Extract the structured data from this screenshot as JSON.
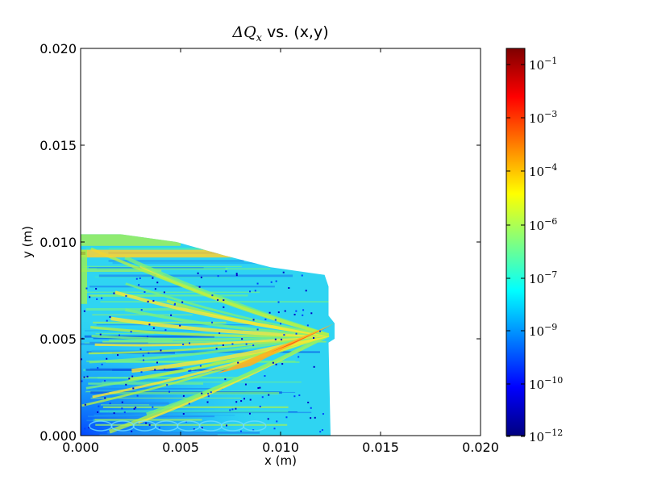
{
  "chart_data": {
    "type": "heatmap",
    "title": "ΔQ",
    "title_subscript": "x",
    "title_suffix": " vs. (x,y)",
    "xlabel": "x (m)",
    "ylabel": "y (m)",
    "xlim": [
      0.0,
      0.02
    ],
    "ylim": [
      0.0,
      0.02
    ],
    "xticks": [
      0.0,
      0.005,
      0.01,
      0.015,
      0.02
    ],
    "xtick_labels": [
      "0.000",
      "0.005",
      "0.010",
      "0.015",
      "0.020"
    ],
    "yticks": [
      0.0,
      0.005,
      0.01,
      0.015,
      0.02
    ],
    "ytick_labels": [
      "0.000",
      "0.005",
      "0.010",
      "0.015",
      "0.020"
    ],
    "grid": false,
    "colormap": "jet",
    "color_scale": "log",
    "colorbar": {
      "labels": [
        {
          "base": "10",
          "exp": "−1"
        },
        {
          "base": "10",
          "exp": "−3"
        },
        {
          "base": "10",
          "exp": "−4"
        },
        {
          "base": "10",
          "exp": "−6"
        },
        {
          "base": "10",
          "exp": "−7"
        },
        {
          "base": "10",
          "exp": "−9"
        },
        {
          "base": "10",
          "exp": "−10"
        },
        {
          "base": "10",
          "exp": "−12"
        }
      ],
      "colors": [
        "#7f0000",
        "#ff0000",
        "#ff8000",
        "#ffff00",
        "#80ff80",
        "#00ffff",
        "#0080ff",
        "#0000ff",
        "#00007f"
      ]
    },
    "data_region": {
      "description": "stable area boundary (x, y) in meters",
      "boundary": [
        [
          0.0,
          0.0
        ],
        [
          0.0,
          0.0104
        ],
        [
          0.002,
          0.0104
        ],
        [
          0.0048,
          0.01
        ],
        [
          0.0072,
          0.0093
        ],
        [
          0.0095,
          0.0087
        ],
        [
          0.0122,
          0.0083
        ],
        [
          0.0124,
          0.0077
        ],
        [
          0.0124,
          0.0062
        ],
        [
          0.0127,
          0.0058
        ],
        [
          0.0127,
          0.005
        ],
        [
          0.0124,
          0.0048
        ],
        [
          0.0125,
          0.0
        ],
        [
          0.0,
          0.0
        ]
      ],
      "features": [
        {
          "name": "high band near top-left",
          "x": [
            0.0,
            0.008
          ],
          "y": [
            0.0092,
            0.0096
          ],
          "level": "1e-4"
        },
        {
          "name": "resonance fan",
          "from": [
            0.006,
            0.0035
          ],
          "to": [
            0.0125,
            0.0058
          ],
          "level": "1e-4"
        },
        {
          "name": "low region bottom-left",
          "x": [
            0.0,
            0.004
          ],
          "y": [
            0.0,
            0.0015
          ],
          "level": "1e-10"
        }
      ]
    }
  }
}
